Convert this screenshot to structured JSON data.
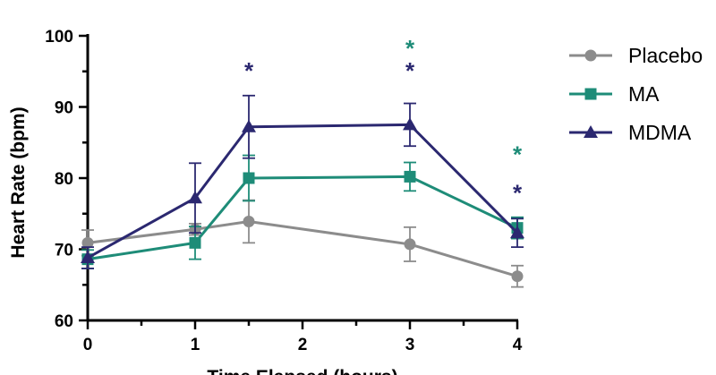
{
  "chart_data": {
    "type": "line",
    "title": "",
    "xlabel": "Time Elapsed (hours)",
    "ylabel": "Heart Rate (bpm)",
    "xlim": [
      0,
      4
    ],
    "ylim": [
      60,
      100
    ],
    "x_ticks": [
      "0",
      "1",
      "2",
      "3",
      "4"
    ],
    "y_ticks": [
      "60",
      "70",
      "80",
      "90",
      "100"
    ],
    "grid": false,
    "legend_position": "right",
    "series": [
      {
        "name": "Placebo",
        "color": "#8c8c8c",
        "marker": "circle",
        "x": [
          0,
          1,
          1.5,
          3,
          4
        ],
        "y": [
          70.9,
          72.8,
          73.9,
          70.7,
          66.2
        ],
        "error": [
          1.8,
          0.8,
          3.0,
          2.4,
          1.5
        ]
      },
      {
        "name": "MA",
        "color": "#1e8c78",
        "marker": "square",
        "x": [
          0,
          1,
          1.5,
          3,
          4
        ],
        "y": [
          68.6,
          70.9,
          80.0,
          80.2,
          73.0
        ],
        "error": [
          1.3,
          2.3,
          3.2,
          2.0,
          1.5
        ]
      },
      {
        "name": "MDMA",
        "color": "#2b2870",
        "marker": "triangle",
        "x": [
          0,
          1,
          1.5,
          3,
          4
        ],
        "y": [
          68.8,
          77.2,
          87.2,
          87.5,
          72.3
        ],
        "error": [
          1.5,
          4.9,
          4.4,
          3.0,
          2.0
        ]
      }
    ],
    "annotations": [
      {
        "text": "*",
        "x": 1.5,
        "series": "MDMA",
        "y": 95.5
      },
      {
        "text": "*",
        "x": 3,
        "series": "MDMA",
        "y": 95.5
      },
      {
        "text": "*",
        "x": 3,
        "series": "MA",
        "y": 98.6
      },
      {
        "text": "*",
        "x": 4,
        "series": "MDMA",
        "y": 78.3
      },
      {
        "text": "*",
        "x": 4,
        "series": "MA",
        "y": 83.7
      }
    ]
  }
}
